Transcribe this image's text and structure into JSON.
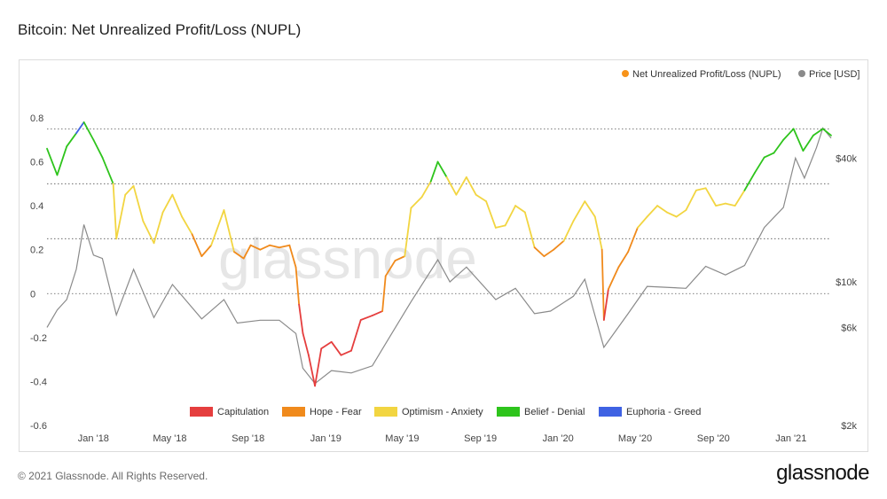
{
  "title": "Bitcoin: Net Unrealized Profit/Loss (NUPL)",
  "footer": {
    "copyright": "© 2021 Glassnode. All Rights Reserved.",
    "logo": "glassnode"
  },
  "chart_data": {
    "type": "line",
    "watermark": "glassnode",
    "legend_top": [
      {
        "label": "Net Unrealized Profit/Loss (NUPL)",
        "color": "#f7931a"
      },
      {
        "label": "Price [USD]",
        "color": "#8a8a8a"
      }
    ],
    "legend_bottom": [
      {
        "label": "Capitulation",
        "color": "#e53e3e"
      },
      {
        "label": "Hope - Fear",
        "color": "#f08a1c"
      },
      {
        "label": "Optimism - Anxiety",
        "color": "#f2d541"
      },
      {
        "label": "Belief - Denial",
        "color": "#2ec41c"
      },
      {
        "label": "Euphoria - Greed",
        "color": "#3f62e3"
      }
    ],
    "x_range": [
      "2017-10-20",
      "2021-03-05"
    ],
    "x_ticks": [
      {
        "label": "Jan '18",
        "date": "2018-01-01"
      },
      {
        "label": "May '18",
        "date": "2018-05-01"
      },
      {
        "label": "Sep '18",
        "date": "2018-09-01"
      },
      {
        "label": "Jan '19",
        "date": "2019-01-01"
      },
      {
        "label": "May '19",
        "date": "2019-05-01"
      },
      {
        "label": "Sep '19",
        "date": "2019-09-01"
      },
      {
        "label": "Jan '20",
        "date": "2020-01-01"
      },
      {
        "label": "May '20",
        "date": "2020-05-01"
      },
      {
        "label": "Sep '20",
        "date": "2020-09-01"
      },
      {
        "label": "Jan '21",
        "date": "2021-01-01"
      }
    ],
    "y_left": {
      "ticks": [
        "0.8",
        "0.6",
        "0.4",
        "0.2",
        "0",
        "-0.2",
        "-0.4",
        "-0.6"
      ],
      "tick_values": [
        0.8,
        0.6,
        0.4,
        0.2,
        0,
        -0.2,
        -0.4,
        -0.6
      ],
      "range": [
        -0.6,
        0.82
      ]
    },
    "y_right": {
      "scale": "log",
      "ticks": [
        "$40k",
        "$10k",
        "$6k",
        "$2k"
      ],
      "tick_values": [
        40000,
        10000,
        6000,
        2000
      ],
      "range": [
        2000,
        66000
      ]
    },
    "zone_lines": [
      0.75,
      0.5,
      0.25,
      0
    ],
    "zones": [
      {
        "name": "Capitulation",
        "max": 0,
        "color": "#e53e3e"
      },
      {
        "name": "Hope - Fear",
        "max": 0.25,
        "color": "#f08a1c"
      },
      {
        "name": "Optimism - Anxiety",
        "max": 0.5,
        "color": "#f2d541"
      },
      {
        "name": "Belief - Denial",
        "max": 0.75,
        "color": "#2ec41c"
      },
      {
        "name": "Euphoria - Greed",
        "max": 1,
        "color": "#3f62e3"
      }
    ],
    "series": [
      {
        "name": "Net Unrealized Profit/Loss (NUPL)",
        "points": [
          [
            "2017-10-20",
            0.66
          ],
          [
            "2017-11-05",
            0.54
          ],
          [
            "2017-11-20",
            0.67
          ],
          [
            "2017-12-05",
            0.73
          ],
          [
            "2017-12-17",
            0.78
          ],
          [
            "2018-01-01",
            0.7
          ],
          [
            "2018-01-15",
            0.62
          ],
          [
            "2018-02-01",
            0.5
          ],
          [
            "2018-02-06",
            0.25
          ],
          [
            "2018-02-20",
            0.45
          ],
          [
            "2018-03-05",
            0.49
          ],
          [
            "2018-03-20",
            0.33
          ],
          [
            "2018-04-06",
            0.23
          ],
          [
            "2018-04-20",
            0.37
          ],
          [
            "2018-05-05",
            0.45
          ],
          [
            "2018-05-20",
            0.35
          ],
          [
            "2018-06-05",
            0.27
          ],
          [
            "2018-06-20",
            0.17
          ],
          [
            "2018-07-05",
            0.22
          ],
          [
            "2018-07-25",
            0.38
          ],
          [
            "2018-08-10",
            0.19
          ],
          [
            "2018-08-25",
            0.16
          ],
          [
            "2018-09-05",
            0.22
          ],
          [
            "2018-09-20",
            0.2
          ],
          [
            "2018-10-05",
            0.22
          ],
          [
            "2018-10-20",
            0.21
          ],
          [
            "2018-11-05",
            0.22
          ],
          [
            "2018-11-15",
            0.12
          ],
          [
            "2018-11-20",
            -0.05
          ],
          [
            "2018-11-26",
            -0.18
          ],
          [
            "2018-12-05",
            -0.28
          ],
          [
            "2018-12-15",
            -0.42
          ],
          [
            "2018-12-25",
            -0.25
          ],
          [
            "2019-01-10",
            -0.22
          ],
          [
            "2019-01-25",
            -0.28
          ],
          [
            "2019-02-10",
            -0.26
          ],
          [
            "2019-02-25",
            -0.12
          ],
          [
            "2019-03-15",
            -0.1
          ],
          [
            "2019-03-31",
            -0.08
          ],
          [
            "2019-04-05",
            0.08
          ],
          [
            "2019-04-20",
            0.15
          ],
          [
            "2019-05-05",
            0.17
          ],
          [
            "2019-05-15",
            0.39
          ],
          [
            "2019-06-01",
            0.44
          ],
          [
            "2019-06-15",
            0.51
          ],
          [
            "2019-06-26",
            0.6
          ],
          [
            "2019-07-10",
            0.53
          ],
          [
            "2019-07-25",
            0.45
          ],
          [
            "2019-08-10",
            0.53
          ],
          [
            "2019-08-25",
            0.45
          ],
          [
            "2019-09-10",
            0.42
          ],
          [
            "2019-09-25",
            0.3
          ],
          [
            "2019-10-10",
            0.31
          ],
          [
            "2019-10-26",
            0.4
          ],
          [
            "2019-11-10",
            0.37
          ],
          [
            "2019-11-25",
            0.21
          ],
          [
            "2019-12-10",
            0.17
          ],
          [
            "2019-12-25",
            0.2
          ],
          [
            "2020-01-10",
            0.24
          ],
          [
            "2020-01-25",
            0.33
          ],
          [
            "2020-02-12",
            0.42
          ],
          [
            "2020-02-28",
            0.35
          ],
          [
            "2020-03-10",
            0.2
          ],
          [
            "2020-03-13",
            -0.12
          ],
          [
            "2020-03-20",
            0.02
          ],
          [
            "2020-04-05",
            0.12
          ],
          [
            "2020-04-20",
            0.19
          ],
          [
            "2020-05-05",
            0.3
          ],
          [
            "2020-05-20",
            0.35
          ],
          [
            "2020-06-05",
            0.4
          ],
          [
            "2020-06-20",
            0.37
          ],
          [
            "2020-07-05",
            0.35
          ],
          [
            "2020-07-20",
            0.38
          ],
          [
            "2020-08-05",
            0.47
          ],
          [
            "2020-08-20",
            0.48
          ],
          [
            "2020-09-05",
            0.4
          ],
          [
            "2020-09-20",
            0.41
          ],
          [
            "2020-10-05",
            0.4
          ],
          [
            "2020-10-20",
            0.47
          ],
          [
            "2020-11-05",
            0.55
          ],
          [
            "2020-11-20",
            0.62
          ],
          [
            "2020-12-05",
            0.64
          ],
          [
            "2020-12-20",
            0.7
          ],
          [
            "2021-01-05",
            0.75
          ],
          [
            "2021-01-20",
            0.65
          ],
          [
            "2021-02-05",
            0.72
          ],
          [
            "2021-02-20",
            0.75
          ],
          [
            "2021-03-05",
            0.72
          ]
        ]
      },
      {
        "name": "Price [USD]",
        "color": "#8a8a8a",
        "points": [
          [
            "2017-10-20",
            6000
          ],
          [
            "2017-11-05",
            7300
          ],
          [
            "2017-11-20",
            8200
          ],
          [
            "2017-12-05",
            11500
          ],
          [
            "2017-12-17",
            19000
          ],
          [
            "2018-01-01",
            13500
          ],
          [
            "2018-01-15",
            13000
          ],
          [
            "2018-02-06",
            6900
          ],
          [
            "2018-03-05",
            11500
          ],
          [
            "2018-04-06",
            6700
          ],
          [
            "2018-05-05",
            9700
          ],
          [
            "2018-06-20",
            6600
          ],
          [
            "2018-07-25",
            8200
          ],
          [
            "2018-08-15",
            6300
          ],
          [
            "2018-09-20",
            6500
          ],
          [
            "2018-10-20",
            6500
          ],
          [
            "2018-11-15",
            5600
          ],
          [
            "2018-11-26",
            3800
          ],
          [
            "2018-12-15",
            3200
          ],
          [
            "2019-01-10",
            3700
          ],
          [
            "2019-02-10",
            3600
          ],
          [
            "2019-03-15",
            3900
          ],
          [
            "2019-04-05",
            5000
          ],
          [
            "2019-05-15",
            8000
          ],
          [
            "2019-06-26",
            12800
          ],
          [
            "2019-07-15",
            10000
          ],
          [
            "2019-08-10",
            11800
          ],
          [
            "2019-09-25",
            8200
          ],
          [
            "2019-10-26",
            9300
          ],
          [
            "2019-11-25",
            7000
          ],
          [
            "2019-12-20",
            7200
          ],
          [
            "2020-01-25",
            8500
          ],
          [
            "2020-02-12",
            10300
          ],
          [
            "2020-03-13",
            4800
          ],
          [
            "2020-04-20",
            7000
          ],
          [
            "2020-05-20",
            9500
          ],
          [
            "2020-07-20",
            9300
          ],
          [
            "2020-08-20",
            11900
          ],
          [
            "2020-09-20",
            10800
          ],
          [
            "2020-10-20",
            12000
          ],
          [
            "2020-11-20",
            18400
          ],
          [
            "2020-12-20",
            23000
          ],
          [
            "2021-01-08",
            40000
          ],
          [
            "2021-01-22",
            32000
          ],
          [
            "2021-02-10",
            45000
          ],
          [
            "2021-02-20",
            56000
          ],
          [
            "2021-03-05",
            50000
          ]
        ]
      }
    ],
    "grid": "dotted zone lines only"
  }
}
